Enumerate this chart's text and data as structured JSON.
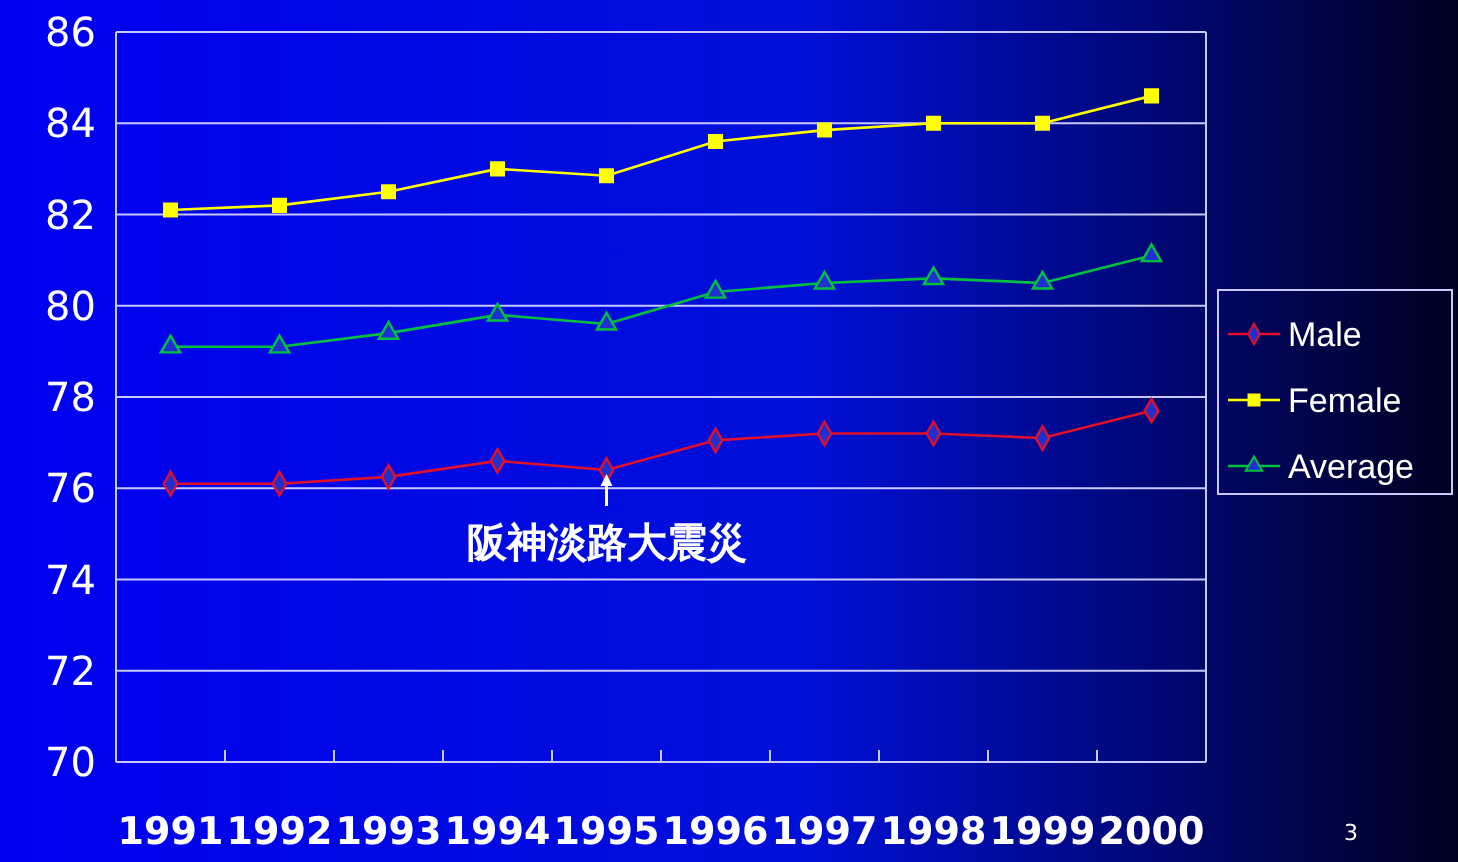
{
  "chart_data": {
    "type": "line",
    "categories": [
      "1991",
      "1992",
      "1993",
      "1994",
      "1995",
      "1996",
      "1997",
      "1998",
      "1999",
      "2000"
    ],
    "series": [
      {
        "name": "Male",
        "color": "#e0102a",
        "marker": "diamond",
        "values": [
          76.1,
          76.1,
          76.25,
          76.6,
          76.4,
          77.05,
          77.2,
          77.2,
          77.1,
          77.7
        ]
      },
      {
        "name": "Female",
        "color": "#ffff00",
        "marker": "square",
        "values": [
          82.1,
          82.2,
          82.5,
          83.0,
          82.85,
          83.6,
          83.85,
          84.0,
          84.0,
          84.6
        ]
      },
      {
        "name": "Average",
        "color": "#00c040",
        "marker": "triangle",
        "values": [
          79.1,
          79.1,
          79.4,
          79.8,
          79.6,
          80.3,
          80.5,
          80.6,
          80.5,
          81.1
        ]
      }
    ],
    "ylim": [
      70,
      86
    ],
    "yticks": [
      70,
      72,
      74,
      76,
      78,
      80,
      82,
      84,
      86
    ],
    "grid": "y",
    "legend": "right",
    "line_style": "solid",
    "annotations": [
      {
        "text": "阪神淡路大震災",
        "x": "1995",
        "y": 76.4
      },
      "3"
    ]
  }
}
